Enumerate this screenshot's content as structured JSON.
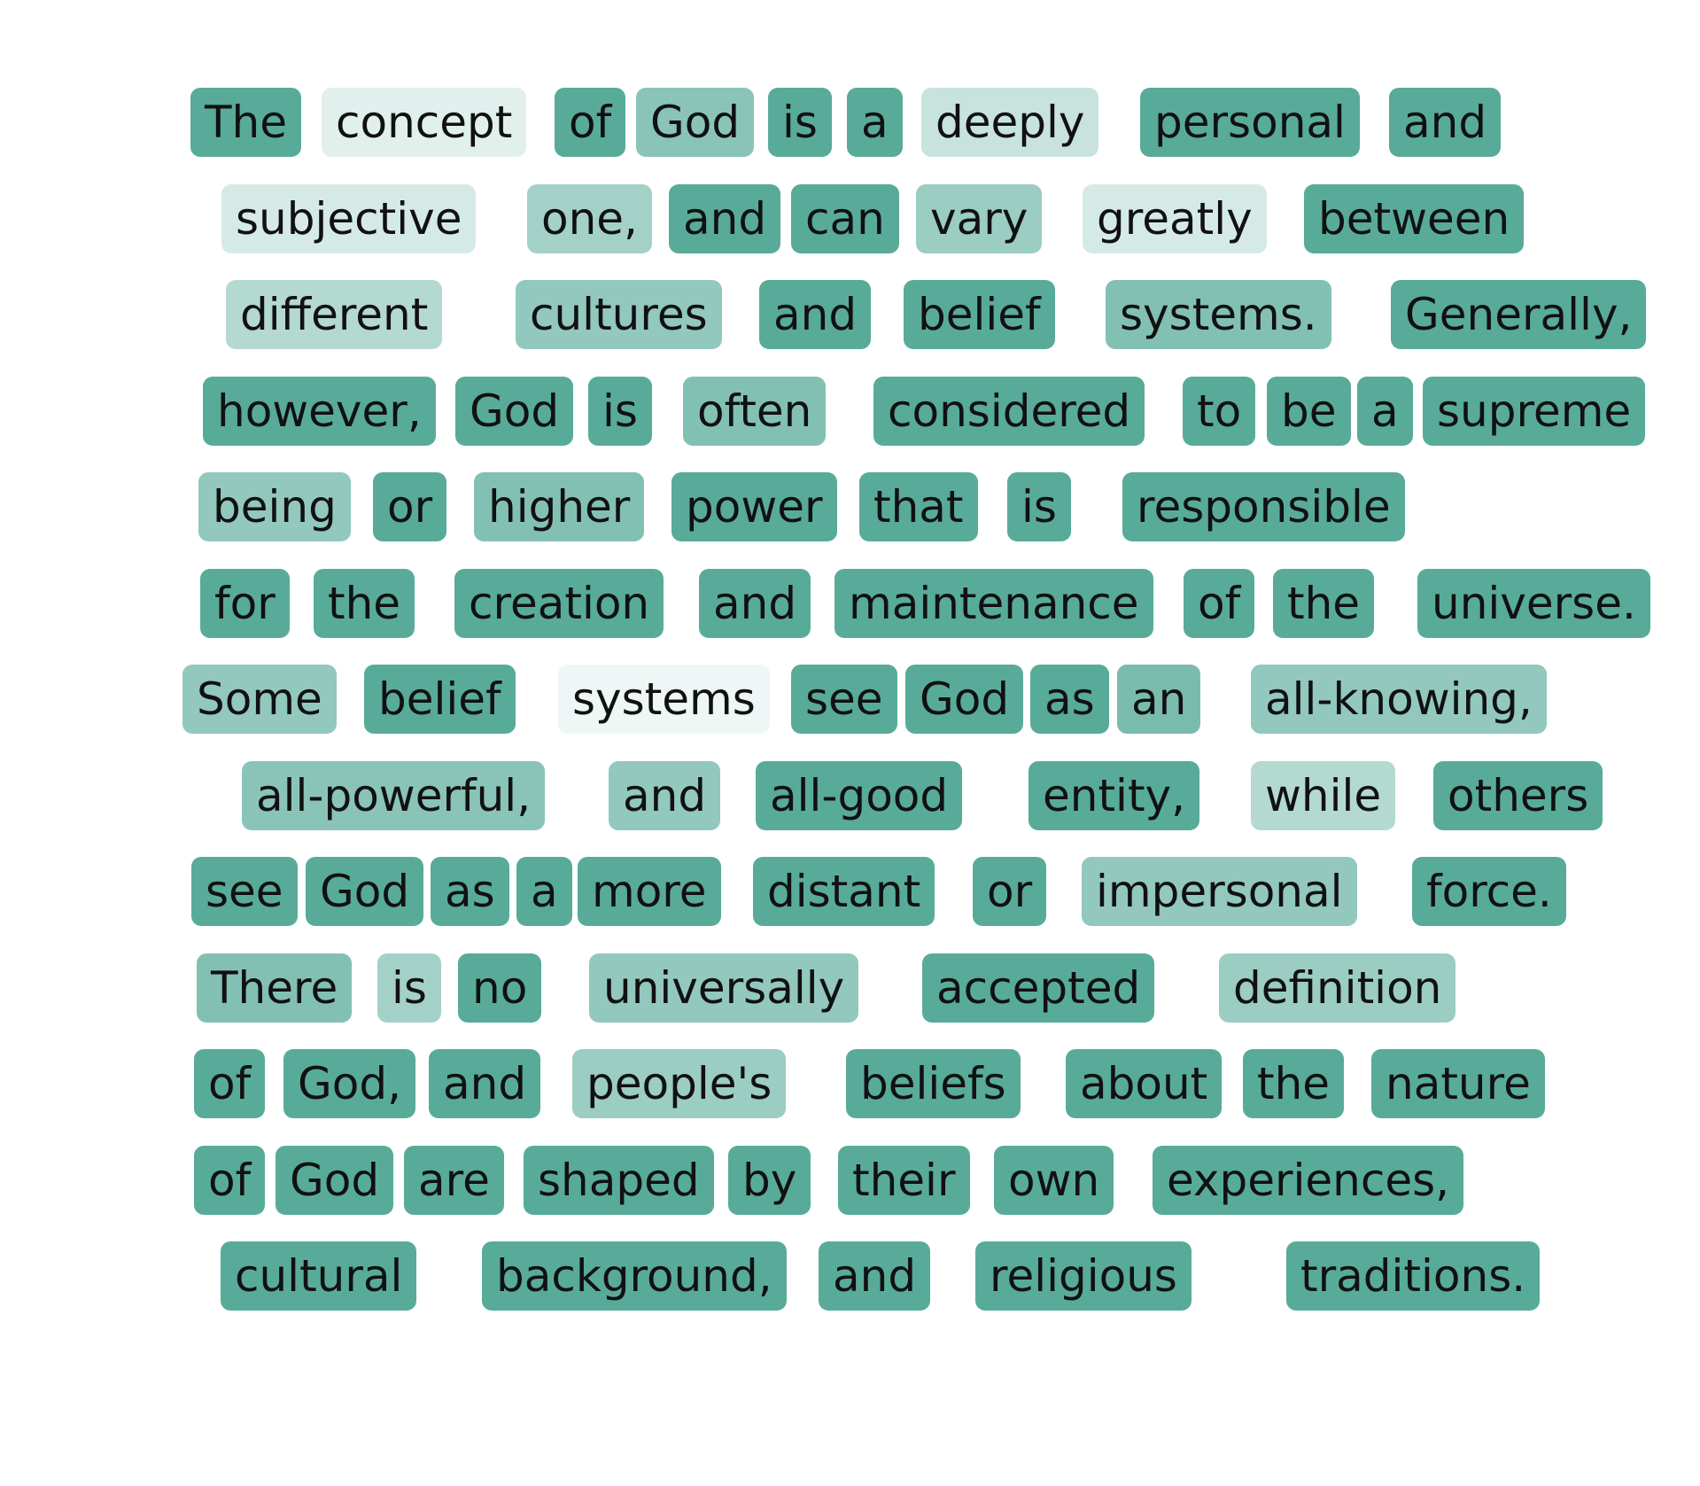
{
  "base_color": "#58ab99",
  "lines": [
    [
      {
        "text": "The",
        "weight": 1.0
      },
      {
        "text": "concept",
        "weight": 0.18
      },
      {
        "text": "of",
        "weight": 1.0
      },
      {
        "text": "God",
        "weight": 0.7
      },
      {
        "text": "is",
        "weight": 1.0
      },
      {
        "text": "a",
        "weight": 1.0
      },
      {
        "text": "deeply",
        "weight": 0.33
      },
      {
        "text": "personal",
        "weight": 1.0
      },
      {
        "text": "and",
        "weight": 1.0
      }
    ],
    [
      {
        "text": "subjective",
        "weight": 0.25
      },
      {
        "text": "one,",
        "weight": 0.55
      },
      {
        "text": "and",
        "weight": 1.0
      },
      {
        "text": "can",
        "weight": 1.0
      },
      {
        "text": "vary",
        "weight": 0.6
      },
      {
        "text": "greatly",
        "weight": 0.25
      },
      {
        "text": "between",
        "weight": 1.0
      }
    ],
    [
      {
        "text": "different",
        "weight": 0.45
      },
      {
        "text": "cultures",
        "weight": 0.65
      },
      {
        "text": "and",
        "weight": 1.0
      },
      {
        "text": "belief",
        "weight": 1.0
      },
      {
        "text": "systems.",
        "weight": 0.75
      },
      {
        "text": "Generally,",
        "weight": 1.0
      }
    ],
    [
      {
        "text": "however,",
        "weight": 1.0
      },
      {
        "text": "God",
        "weight": 1.0
      },
      {
        "text": "is",
        "weight": 1.0
      },
      {
        "text": "often",
        "weight": 0.75
      },
      {
        "text": "considered",
        "weight": 1.0
      },
      {
        "text": "to",
        "weight": 1.0
      },
      {
        "text": "be",
        "weight": 1.0
      },
      {
        "text": "a",
        "weight": 1.0
      },
      {
        "text": "supreme",
        "weight": 1.0
      }
    ],
    [
      {
        "text": "being",
        "weight": 0.65
      },
      {
        "text": "or",
        "weight": 1.0
      },
      {
        "text": "higher",
        "weight": 0.75
      },
      {
        "text": "power",
        "weight": 1.0
      },
      {
        "text": "that",
        "weight": 1.0
      },
      {
        "text": "is",
        "weight": 1.0
      },
      {
        "text": "responsible",
        "weight": 1.0
      }
    ],
    [
      {
        "text": "for",
        "weight": 1.0
      },
      {
        "text": "the",
        "weight": 1.0
      },
      {
        "text": "creation",
        "weight": 1.0
      },
      {
        "text": "and",
        "weight": 1.0
      },
      {
        "text": "maintenance",
        "weight": 1.0
      },
      {
        "text": "of",
        "weight": 1.0
      },
      {
        "text": "the",
        "weight": 1.0
      },
      {
        "text": "universe.",
        "weight": 1.0
      }
    ],
    [
      {
        "text": "Some",
        "weight": 0.65
      },
      {
        "text": "belief",
        "weight": 1.0
      },
      {
        "text": "systems",
        "weight": 0.1
      },
      {
        "text": "see",
        "weight": 1.0
      },
      {
        "text": "God",
        "weight": 1.0
      },
      {
        "text": "as",
        "weight": 1.0
      },
      {
        "text": "an",
        "weight": 0.8
      },
      {
        "text": "all-knowing,",
        "weight": 0.65
      }
    ],
    [
      {
        "text": "all-powerful,",
        "weight": 0.7
      },
      {
        "text": "and",
        "weight": 0.65
      },
      {
        "text": "all-good",
        "weight": 1.0
      },
      {
        "text": "entity,",
        "weight": 1.0
      },
      {
        "text": "while",
        "weight": 0.45
      },
      {
        "text": "others",
        "weight": 1.0
      }
    ],
    [
      {
        "text": "see",
        "weight": 1.0
      },
      {
        "text": "God",
        "weight": 1.0
      },
      {
        "text": "as",
        "weight": 1.0
      },
      {
        "text": "a",
        "weight": 1.0
      },
      {
        "text": "more",
        "weight": 1.0
      },
      {
        "text": "distant",
        "weight": 1.0
      },
      {
        "text": "or",
        "weight": 1.0
      },
      {
        "text": "impersonal",
        "weight": 0.65
      },
      {
        "text": "force.",
        "weight": 1.0
      }
    ],
    [
      {
        "text": "There",
        "weight": 0.75
      },
      {
        "text": "is",
        "weight": 0.55
      },
      {
        "text": "no",
        "weight": 1.0
      },
      {
        "text": "universally",
        "weight": 0.65
      },
      {
        "text": "accepted",
        "weight": 1.0
      },
      {
        "text": "definition",
        "weight": 0.6
      }
    ],
    [
      {
        "text": "of",
        "weight": 1.0
      },
      {
        "text": "God,",
        "weight": 1.0
      },
      {
        "text": "and",
        "weight": 1.0
      },
      {
        "text": "people's",
        "weight": 0.6
      },
      {
        "text": "beliefs",
        "weight": 1.0
      },
      {
        "text": "about",
        "weight": 1.0
      },
      {
        "text": "the",
        "weight": 1.0
      },
      {
        "text": "nature",
        "weight": 1.0
      }
    ],
    [
      {
        "text": "of",
        "weight": 1.0
      },
      {
        "text": "God",
        "weight": 1.0
      },
      {
        "text": "are",
        "weight": 1.0
      },
      {
        "text": "shaped",
        "weight": 1.0
      },
      {
        "text": "by",
        "weight": 1.0
      },
      {
        "text": "their",
        "weight": 1.0
      },
      {
        "text": "own",
        "weight": 1.0
      },
      {
        "text": "experiences,",
        "weight": 1.0
      }
    ],
    [
      {
        "text": "cultural",
        "weight": 1.0
      },
      {
        "text": "background,",
        "weight": 1.0
      },
      {
        "text": "and",
        "weight": 1.0
      },
      {
        "text": "religious",
        "weight": 1.0
      },
      {
        "text": "traditions.",
        "weight": 1.0
      }
    ]
  ]
}
